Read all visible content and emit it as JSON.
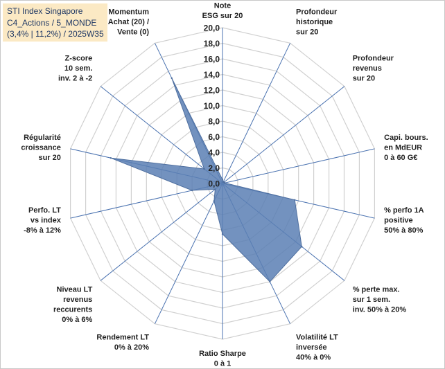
{
  "title_box": {
    "line1": "STI Index Singapore",
    "line2": "C4_Actions / 5_MONDE",
    "line3": "(3,4% | 11,2%) / 2025W35"
  },
  "chart_data": {
    "type": "radar",
    "title": "STI Index Singapore",
    "range": [
      0,
      20
    ],
    "ticks": [
      "0,0",
      "2,0",
      "4,0",
      "6,0",
      "8,0",
      "10,0",
      "12,0",
      "14,0",
      "16,0",
      "18,0",
      "20,0"
    ],
    "grid": true,
    "legend": "none",
    "fill_color": "#5b7fb4",
    "axes": [
      {
        "label": [
          "Note",
          "ESG sur 20"
        ],
        "value": 0.5
      },
      {
        "label": [
          "Profondeur",
          "historique",
          "sur 20"
        ],
        "value": 0.2
      },
      {
        "label": [
          "Profondeur",
          "revenus",
          "sur 20"
        ],
        "value": 0.3
      },
      {
        "label": [
          "Capi. bours.",
          "en MdEUR",
          "0 à 60 G€"
        ],
        "value": 0.3
      },
      {
        "label": [
          "% perfo 1A",
          "positive",
          "50% à 80%"
        ],
        "value": 9.5
      },
      {
        "label": [
          "% perte max.",
          "sur 1 sem.",
          "inv. 50% à 20%"
        ],
        "value": 13.0
      },
      {
        "label": [
          "Volatilité LT",
          "inversée",
          "40% à 0%"
        ],
        "value": 14.0
      },
      {
        "label": [
          "Ratio Sharpe",
          "0 à 1"
        ],
        "value": 6.5
      },
      {
        "label": [
          "Rendement LT",
          "0% à 20%"
        ],
        "value": 2.5
      },
      {
        "label": [
          "Niveau LT",
          "revenus",
          "reccurents",
          "0% à 6%"
        ],
        "value": 1.2
      },
      {
        "label": [
          "Perfo. LT",
          "vs index",
          "-8% à 12%"
        ],
        "value": 4.0
      },
      {
        "label": [
          "Régularité",
          "croissance",
          "sur 20"
        ],
        "value": 14.7
      },
      {
        "label": [
          "Z-score",
          "10 sem.",
          "inv. 2 à -2"
        ],
        "value": 3.0
      },
      {
        "label": [
          "Momentum",
          "Achat (20) /",
          "Vente (0)"
        ],
        "value": 15.0
      }
    ]
  }
}
